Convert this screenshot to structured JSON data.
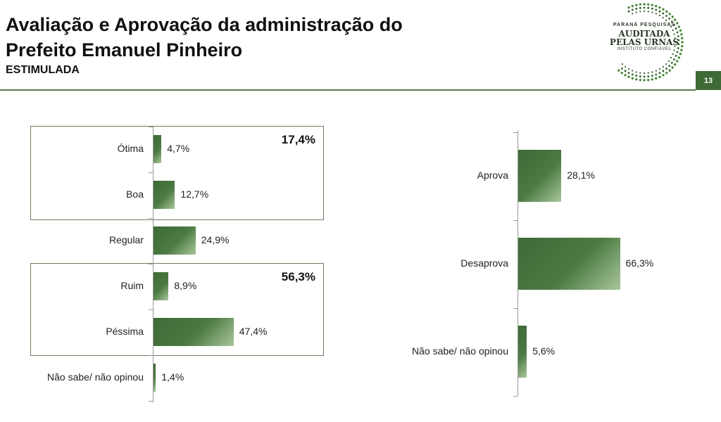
{
  "header": {
    "title_line1": "Avaliação e Aprovação da administração do",
    "title_line2": "Prefeito Emanuel Pinheiro",
    "subtitle": "ESTIMULADA",
    "page_number": "13"
  },
  "logo": {
    "line1": "PARANÁ PESQUISAS",
    "line2": "AUDITADA",
    "line3": "PELAS URNAS",
    "line4": "INSTITUTO CONFIÁVEL"
  },
  "colors": {
    "bar": "#3e6a36",
    "accent": "#3f6a35",
    "rule": "#5b7a4c"
  },
  "chart_data": [
    {
      "type": "bar",
      "orientation": "horizontal",
      "categories": [
        "Ótima",
        "Boa",
        "Regular",
        "Ruim",
        "Péssima",
        "Não sabe/ não opinou"
      ],
      "values": [
        4.7,
        12.7,
        24.9,
        8.9,
        47.4,
        1.4
      ],
      "value_labels": [
        "4,7%",
        "12,7%",
        "24,9%",
        "8,9%",
        "47,4%",
        "1,4%"
      ],
      "groups": [
        {
          "members": [
            "Ótima",
            "Boa"
          ],
          "total": 17.4,
          "total_label": "17,4%"
        },
        {
          "members": [
            "Ruim",
            "Péssima"
          ],
          "total": 56.3,
          "total_label": "56,3%"
        }
      ],
      "xlim": [
        0,
        100
      ],
      "grid": false,
      "legend": "none"
    },
    {
      "type": "bar",
      "orientation": "horizontal",
      "categories": [
        "Aprova",
        "Desaprova",
        "Não sabe/ não opinou"
      ],
      "values": [
        28.1,
        66.3,
        5.6
      ],
      "value_labels": [
        "28,1%",
        "66,3%",
        "5,6%"
      ],
      "xlim": [
        0,
        100
      ],
      "grid": false,
      "legend": "none"
    }
  ]
}
